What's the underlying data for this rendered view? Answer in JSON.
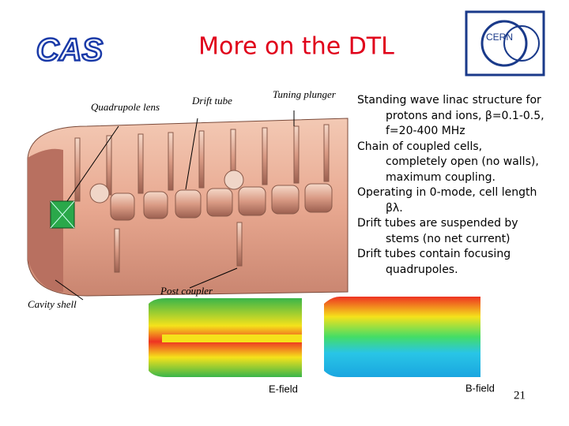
{
  "header": {
    "logo": "CAS",
    "title": "More on the DTL",
    "cern_logo": "CERN"
  },
  "bullets": [
    "Standing wave linac structure for protons and ions, β=0.1-0.5, f=20-400 MHz",
    "Chain of coupled cells, completely open (no walls), maximum coupling.",
    "Operating in 0-mode, cell length βλ.",
    "Drift tubes are suspended by stems (no net current)",
    "Drift tubes contain focusing quadrupoles."
  ],
  "figure": {
    "labels": {
      "quadrupole_lens": "Quadrupole lens",
      "drift_tube": "Drift tube",
      "tuning_plunger": "Tuning plunger",
      "cavity_shell": "Cavity shell",
      "post_coupler": "Post coupler"
    }
  },
  "field_maps": [
    {
      "label": "E-field"
    },
    {
      "label": "B-field"
    }
  ],
  "page_number": "21"
}
